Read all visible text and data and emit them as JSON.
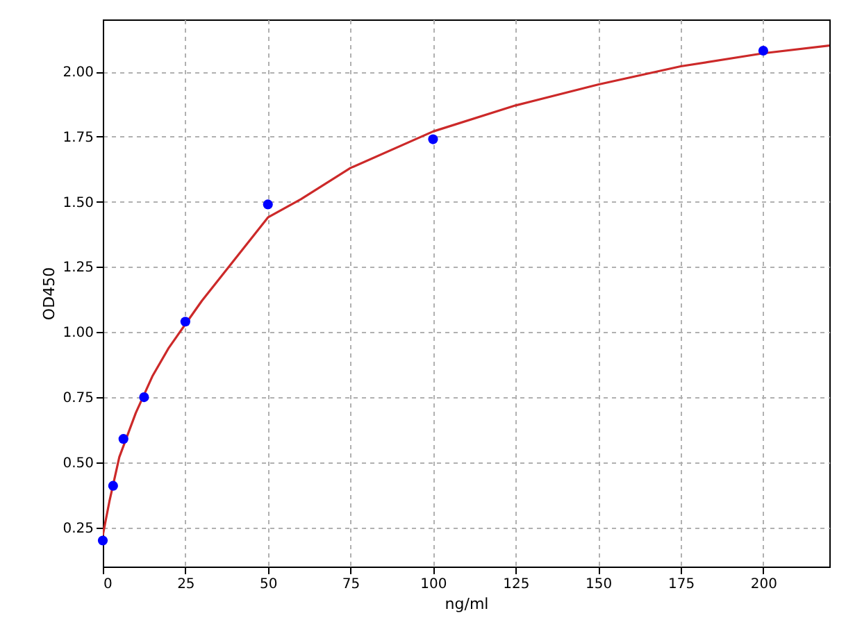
{
  "chart_data": {
    "type": "scatter",
    "xlabel": "ng/ml",
    "ylabel": "OD450",
    "xlim": [
      0,
      220
    ],
    "ylim": [
      0.1,
      2.2
    ],
    "xticks": [
      0,
      25,
      50,
      75,
      100,
      125,
      150,
      175,
      200
    ],
    "yticks": [
      0.25,
      {
        "value": 0.5,
        "label": "0.50"
      },
      0.75,
      {
        "value": 1,
        "label": "1.00"
      },
      1.25,
      {
        "value": 1.5,
        "label": "1.50"
      },
      1.75,
      {
        "value": 2,
        "label": "2.00"
      }
    ],
    "grid": true,
    "series": [
      {
        "color": "#0000ff",
        "marker": "circle",
        "x": [
          0,
          3.125,
          6.25,
          12.5,
          25,
          50,
          100,
          200
        ],
        "values": [
          0.2,
          0.41,
          0.59,
          0.75,
          1.04,
          1.49,
          1.74,
          2.08
        ]
      },
      {
        "type": "line",
        "color": "#cc2929",
        "line_style": "solid",
        "x": [
          0,
          2,
          5,
          10,
          15,
          20,
          25,
          30,
          40,
          50,
          60,
          75,
          100,
          125,
          150,
          175,
          200,
          220
        ],
        "values": [
          0.22,
          0.35,
          0.52,
          0.69,
          0.83,
          0.94,
          1.03,
          1.12,
          1.28,
          1.44,
          1.51,
          1.63,
          1.77,
          1.87,
          1.95,
          2.02,
          2.07,
          2.1
        ]
      }
    ]
  }
}
